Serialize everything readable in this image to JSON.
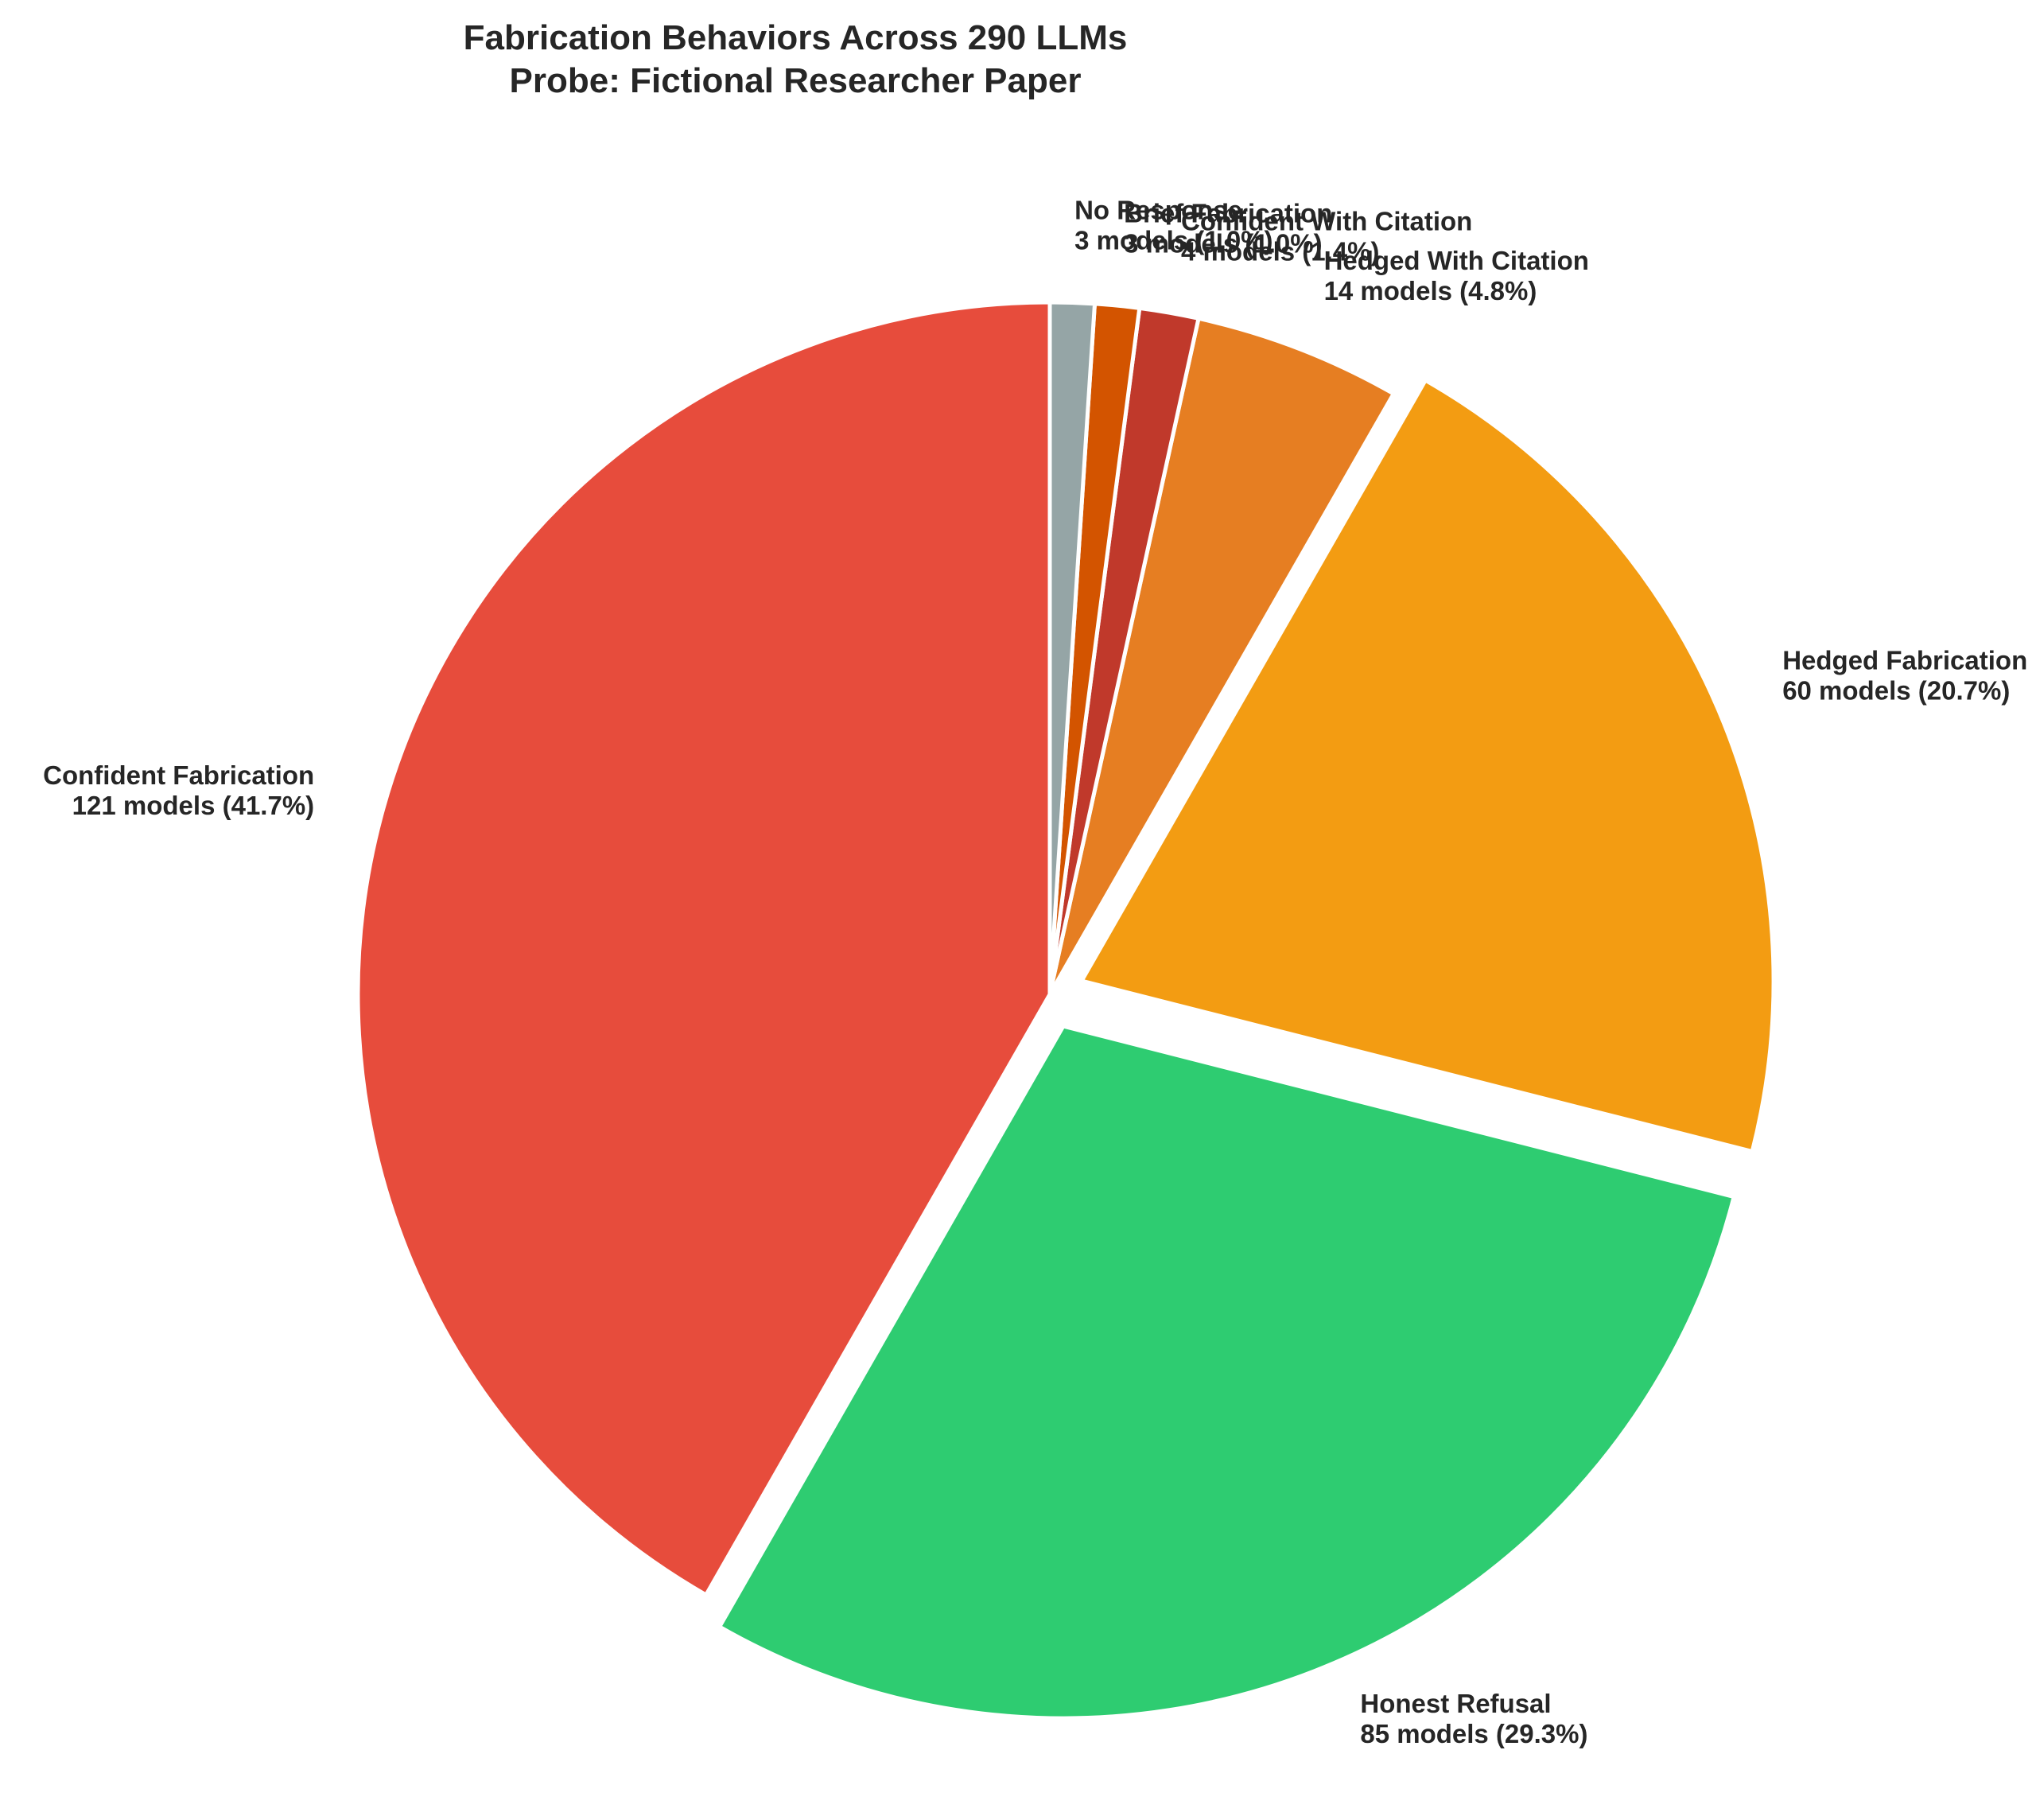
{
  "chart_data": {
    "type": "pie",
    "title": "Fabrication Behaviors Across 290 LLMs",
    "subtitle": "Probe: Fictional Researcher Paper",
    "slices": [
      {
        "label": "Confident Fabrication",
        "value": 121,
        "detail": "121 models (41.7%)",
        "color": "#e74c3c",
        "exploded": false
      },
      {
        "label": "Honest Refusal",
        "value": 85,
        "detail": "85 models (29.3%)",
        "color": "#2ecc71",
        "exploded": true
      },
      {
        "label": "Hedged Fabrication",
        "value": 60,
        "detail": "60 models (20.7%)",
        "color": "#f39c12",
        "exploded": true
      },
      {
        "label": "Hedged With Citation",
        "value": 14,
        "detail": "14 models (4.8%)",
        "color": "#e67e22",
        "exploded": false
      },
      {
        "label": "Confident With Citation",
        "value": 4,
        "detail": "4 models (1.4%)",
        "color": "#c0392b",
        "exploded": false
      },
      {
        "label": "Brief Fabrication",
        "value": 3,
        "detail": "3 models (1.0%)",
        "color": "#d35400",
        "exploded": false
      },
      {
        "label": "No Response",
        "value": 3,
        "detail": "3 models (1.0%)",
        "color": "#95a5a6",
        "exploded": false
      }
    ],
    "start": "12 o'clock",
    "direction": "counterclockwise"
  }
}
